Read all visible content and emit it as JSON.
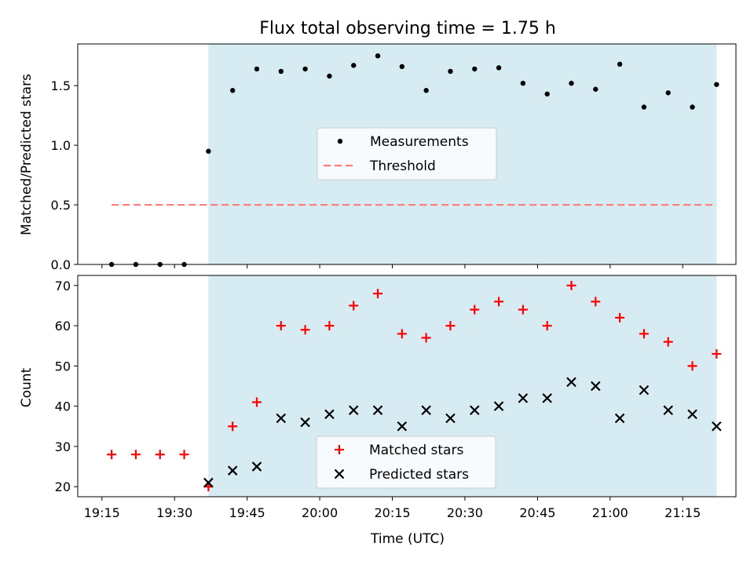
{
  "chart_data": [
    {
      "type": "scatter",
      "title": "Flux total observing time = 1.75 h",
      "xlabel": "",
      "ylabel": "Matched/Predicted stars",
      "ylim": [
        0,
        1.85
      ],
      "yticks": [
        "0.0",
        "0.5",
        "1.0",
        "1.5"
      ],
      "shaded_interval": [
        "19:37",
        "21:22"
      ],
      "shade_color": "#add8e6",
      "legend_position": "center",
      "series": [
        {
          "name": "Measurements",
          "marker": "dot",
          "color": "#000000",
          "points": [
            [
              "19:17",
              0.0
            ],
            [
              "19:22",
              0.0
            ],
            [
              "19:27",
              0.0
            ],
            [
              "19:32",
              0.0
            ],
            [
              "19:37",
              0.95
            ],
            [
              "19:42",
              1.46
            ],
            [
              "19:47",
              1.64
            ],
            [
              "19:52",
              1.62
            ],
            [
              "19:57",
              1.64
            ],
            [
              "20:02",
              1.58
            ],
            [
              "20:07",
              1.67
            ],
            [
              "20:12",
              1.75
            ],
            [
              "20:17",
              1.66
            ],
            [
              "20:22",
              1.46
            ],
            [
              "20:27",
              1.62
            ],
            [
              "20:32",
              1.64
            ],
            [
              "20:37",
              1.65
            ],
            [
              "20:42",
              1.52
            ],
            [
              "20:47",
              1.43
            ],
            [
              "20:52",
              1.52
            ],
            [
              "20:57",
              1.47
            ],
            [
              "21:02",
              1.68
            ],
            [
              "21:07",
              1.32
            ],
            [
              "21:12",
              1.44
            ],
            [
              "21:17",
              1.32
            ],
            [
              "21:22",
              1.51
            ]
          ]
        },
        {
          "name": "Threshold",
          "style": "dashed-line",
          "color": "#ff7b7b",
          "points": [
            [
              "19:17",
              0.5
            ],
            [
              "21:22",
              0.5
            ]
          ]
        }
      ]
    },
    {
      "type": "scatter",
      "title": "",
      "xlabel": "Time (UTC)",
      "ylabel": "Count",
      "ylim": [
        17.5,
        72.5
      ],
      "yticks": [
        "20",
        "30",
        "40",
        "50",
        "60",
        "70"
      ],
      "xticks": [
        "19:15",
        "19:30",
        "19:45",
        "20:00",
        "20:15",
        "20:30",
        "20:45",
        "21:00",
        "21:15"
      ],
      "xrange": [
        "19:10",
        "21:26"
      ],
      "shaded_interval": [
        "19:37",
        "21:22"
      ],
      "shade_color": "#add8e6",
      "legend_position": "lower center",
      "series": [
        {
          "name": "Matched stars",
          "marker": "plus",
          "color": "#ff0000",
          "points": [
            [
              "19:17",
              28
            ],
            [
              "19:22",
              28
            ],
            [
              "19:27",
              28
            ],
            [
              "19:32",
              28
            ],
            [
              "19:37",
              20
            ],
            [
              "19:42",
              35
            ],
            [
              "19:47",
              41
            ],
            [
              "19:52",
              60
            ],
            [
              "19:57",
              59
            ],
            [
              "20:02",
              60
            ],
            [
              "20:07",
              65
            ],
            [
              "20:12",
              68
            ],
            [
              "20:17",
              58
            ],
            [
              "20:22",
              57
            ],
            [
              "20:27",
              60
            ],
            [
              "20:32",
              64
            ],
            [
              "20:37",
              66
            ],
            [
              "20:42",
              64
            ],
            [
              "20:47",
              60
            ],
            [
              "20:52",
              70
            ],
            [
              "20:57",
              66
            ],
            [
              "21:02",
              62
            ],
            [
              "21:07",
              58
            ],
            [
              "21:12",
              56
            ],
            [
              "21:17",
              50
            ],
            [
              "21:22",
              53
            ]
          ]
        },
        {
          "name": "Predicted stars",
          "marker": "x",
          "color": "#000000",
          "points": [
            [
              "19:37",
              21
            ],
            [
              "19:42",
              24
            ],
            [
              "19:47",
              25
            ],
            [
              "19:52",
              37
            ],
            [
              "19:57",
              36
            ],
            [
              "20:02",
              38
            ],
            [
              "20:07",
              39
            ],
            [
              "20:12",
              39
            ],
            [
              "20:17",
              35
            ],
            [
              "20:22",
              39
            ],
            [
              "20:27",
              37
            ],
            [
              "20:32",
              39
            ],
            [
              "20:37",
              40
            ],
            [
              "20:42",
              42
            ],
            [
              "20:47",
              42
            ],
            [
              "20:52",
              46
            ],
            [
              "20:57",
              45
            ],
            [
              "21:02",
              37
            ],
            [
              "21:07",
              44
            ],
            [
              "21:12",
              39
            ],
            [
              "21:17",
              38
            ],
            [
              "21:22",
              35
            ]
          ]
        }
      ]
    }
  ]
}
